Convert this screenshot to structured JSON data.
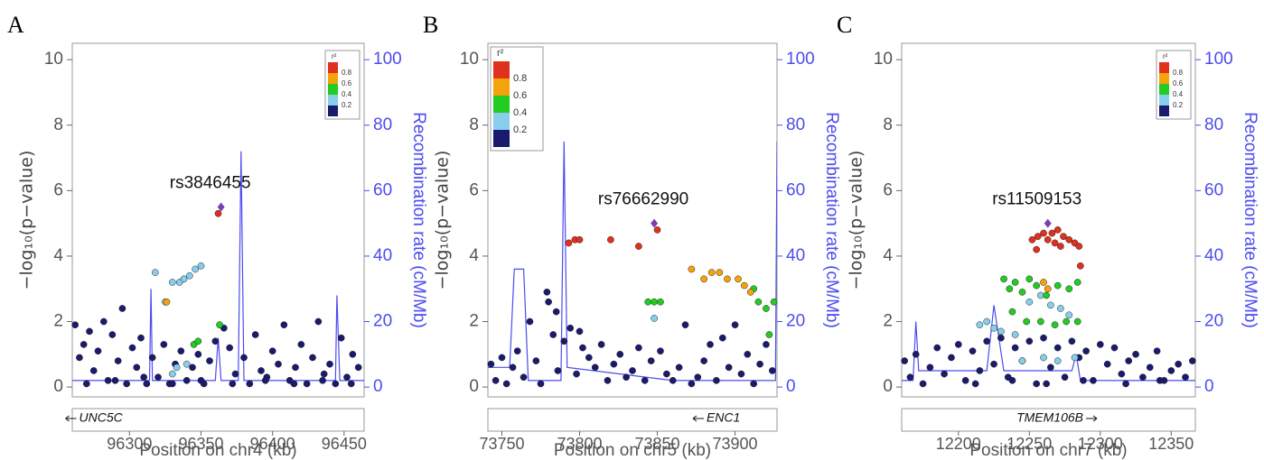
{
  "chart_data": [
    {
      "type": "scatter",
      "panel": "A",
      "xlabel": "Position on chr4 (kb)",
      "ylabel": "−log₁₀(p−value)",
      "y2label": "Recombination rate (cM/Mb)",
      "xlim": [
        96260,
        96464
      ],
      "xticks": [
        96300,
        96350,
        96400,
        96450
      ],
      "ylim": [
        -0.3,
        10.5
      ],
      "yticks": [
        0,
        2,
        4,
        6,
        8,
        10
      ],
      "y2lim": [
        -3,
        105
      ],
      "y2ticks": [
        0,
        20,
        40,
        60,
        80,
        100
      ],
      "legend": {
        "title": "r²",
        "position": "top-right",
        "colors": [
          "#1a1a6e",
          "#87ceeb",
          "#22cc22",
          "#f4a30b",
          "#e0301e"
        ],
        "labels": [
          0.2,
          0.4,
          0.6,
          0.8
        ]
      },
      "series": [
        {
          "color": "#1a1a6e",
          "x": [
            96262,
            96265,
            96268,
            96270,
            96272,
            96275,
            96278,
            96282,
            96285,
            96288,
            96292,
            96295,
            96298,
            96302,
            96305,
            96308,
            96312,
            96316,
            96320,
            96324,
            96328,
            96332,
            96336,
            96340,
            96344,
            96348,
            96352,
            96356,
            96360,
            96366,
            96370,
            96374,
            96380,
            96384,
            96388,
            96392,
            96396,
            96400,
            96404,
            96408,
            96412,
            96416,
            96420,
            96424,
            96428,
            96432,
            96436,
            96440,
            96444,
            96448,
            96452,
            96456,
            96460,
            96290,
            96310,
            96330,
            96350,
            96372,
            96395,
            96415,
            96435,
            96455
          ],
          "values": [
            1.9,
            0.9,
            1.3,
            0.1,
            1.7,
            0.5,
            1.1,
            2.0,
            0.2,
            1.6,
            0.8,
            2.4,
            0.1,
            1.2,
            0.6,
            1.5,
            0.1,
            0.9,
            0.3,
            1.3,
            0.1,
            0.7,
            1.1,
            0.2,
            0.6,
            1.0,
            0.1,
            0.8,
            1.4,
            1.8,
            1.2,
            0.4,
            0.9,
            0.1,
            1.6,
            0.5,
            0.3,
            1.1,
            0.7,
            1.9,
            0.2,
            0.6,
            1.3,
            0.1,
            0.9,
            2.0,
            0.4,
            0.7,
            0.1,
            1.5,
            0.3,
            1.0,
            0.6,
            0.2,
            0.3,
            0.1,
            0.2,
            0.1,
            0.2,
            0.1,
            0.2,
            0.1
          ]
        },
        {
          "color": "#87ceeb",
          "x": [
            96318,
            96325,
            96330,
            96335,
            96338,
            96342,
            96346,
            96350,
            96333,
            96340,
            96330
          ],
          "values": [
            3.5,
            2.6,
            3.2,
            3.2,
            3.3,
            3.4,
            3.6,
            3.7,
            0.6,
            0.7,
            0.4
          ]
        },
        {
          "color": "#22cc22",
          "x": [
            96345,
            96348,
            96363
          ],
          "values": [
            1.3,
            1.4,
            1.9
          ]
        },
        {
          "color": "#f4a30b",
          "x": [
            96326
          ],
          "values": [
            2.6
          ]
        },
        {
          "color": "#e0301e",
          "x": [
            96362
          ],
          "values": [
            5.3
          ]
        }
      ],
      "lead": {
        "label": "rs3846455",
        "x": 96364,
        "value": 5.5,
        "color": "#7b3fb0"
      },
      "recombination": {
        "color": "#4c4cf0",
        "axis": "y2",
        "x": [
          96260,
          96314,
          96315,
          96316,
          96330,
          96360,
          96362,
          96364,
          96376,
          96378,
          96380,
          96444,
          96445,
          96447,
          96464
        ],
        "values": [
          2,
          2,
          30,
          2,
          2,
          2,
          15,
          2,
          2,
          72,
          2,
          2,
          28,
          2,
          2
        ]
      },
      "gene": {
        "name": "UNC5C",
        "start": 96200,
        "end": 96300,
        "strand": "-"
      }
    },
    {
      "type": "scatter",
      "panel": "B",
      "xlabel": "Position on chr5 (kb)",
      "ylabel": "−log₁₀(p−value)",
      "y2label": "Recombination rate (cM/Mb)",
      "xlim": [
        73741,
        73927
      ],
      "xticks": [
        73750,
        73800,
        73850,
        73900
      ],
      "ylim": [
        -0.3,
        10.5
      ],
      "yticks": [
        0,
        2,
        4,
        6,
        8,
        10
      ],
      "y2lim": [
        -3,
        105
      ],
      "y2ticks": [
        0,
        20,
        40,
        60,
        80,
        100
      ],
      "legend": {
        "title": "r²",
        "position": "top-left",
        "colors": [
          "#1a1a6e",
          "#87ceeb",
          "#22cc22",
          "#f4a30b",
          "#e0301e"
        ],
        "labels": [
          0.2,
          0.4,
          0.6,
          0.8
        ]
      },
      "series": [
        {
          "color": "#1a1a6e",
          "x": [
            73743,
            73746,
            73750,
            73753,
            73757,
            73760,
            73764,
            73768,
            73772,
            73775,
            73779,
            73783,
            73786,
            73790,
            73794,
            73798,
            73802,
            73806,
            73810,
            73814,
            73818,
            73822,
            73826,
            73830,
            73834,
            73838,
            73842,
            73846,
            73852,
            73856,
            73860,
            73864,
            73868,
            73872,
            73876,
            73880,
            73884,
            73888,
            73892,
            73896,
            73900,
            73904,
            73908,
            73912,
            73916,
            73920,
            73924,
            73780,
            73785,
            73800
          ],
          "values": [
            0.7,
            0.2,
            0.9,
            0.1,
            0.6,
            1.1,
            0.3,
            2.0,
            0.8,
            0.1,
            2.9,
            1.6,
            0.5,
            1.4,
            1.8,
            0.4,
            1.2,
            0.9,
            0.6,
            1.3,
            0.2,
            0.7,
            1.0,
            0.3,
            0.5,
            1.2,
            0.2,
            0.8,
            1.1,
            0.4,
            0.2,
            0.6,
            1.9,
            0.1,
            0.3,
            0.8,
            1.3,
            0.2,
            1.5,
            0.6,
            1.9,
            0.4,
            1.0,
            0.1,
            0.7,
            1.3,
            0.5,
            2.6,
            2.3,
            1.7
          ]
        },
        {
          "color": "#87ceeb",
          "x": [
            73848
          ],
          "values": [
            2.1
          ]
        },
        {
          "color": "#22cc22",
          "x": [
            73844,
            73848,
            73852,
            73915,
            73920,
            73925,
            73922,
            73912
          ],
          "values": [
            2.6,
            2.6,
            2.6,
            2.6,
            2.4,
            2.6,
            1.6,
            3.0
          ]
        },
        {
          "color": "#f4a30b",
          "x": [
            73872,
            73880,
            73885,
            73890,
            73895,
            73902,
            73906,
            73910
          ],
          "values": [
            3.6,
            3.3,
            3.5,
            3.5,
            3.3,
            3.3,
            3.1,
            2.9
          ]
        },
        {
          "color": "#e0301e",
          "x": [
            73793,
            73797,
            73800,
            73820,
            73838,
            73850
          ],
          "values": [
            4.4,
            4.5,
            4.5,
            4.5,
            4.3,
            4.8
          ]
        }
      ],
      "lead": {
        "label": "rs76662990",
        "x": 73848,
        "value": 5.0,
        "color": "#7b3fb0"
      },
      "recombination": {
        "color": "#4c4cf0",
        "axis": "y2",
        "x": [
          73741,
          73755,
          73758,
          73764,
          73767,
          73788,
          73790,
          73792,
          73860,
          73926,
          73927
        ],
        "values": [
          6,
          6,
          36,
          36,
          2,
          2,
          75,
          6,
          2,
          2,
          75
        ]
      },
      "gene": {
        "name": "ENC1",
        "start": 73885,
        "end": 73900,
        "strand": "-"
      }
    },
    {
      "type": "scatter",
      "panel": "C",
      "xlabel": "Position on chr7 (kb)",
      "ylabel": "−log₁₀(p−value)",
      "y2label": "Recombination rate (cM/Mb)",
      "xlim": [
        12160,
        12367
      ],
      "xticks": [
        12200,
        12250,
        12300,
        12350
      ],
      "ylim": [
        -0.3,
        10.5
      ],
      "yticks": [
        0,
        2,
        4,
        6,
        8,
        10
      ],
      "y2lim": [
        -3,
        105
      ],
      "y2ticks": [
        0,
        20,
        40,
        60,
        80,
        100
      ],
      "legend": {
        "title": "r²",
        "position": "top-right",
        "colors": [
          "#1a1a6e",
          "#87ceeb",
          "#22cc22",
          "#f4a30b",
          "#e0301e"
        ],
        "labels": [
          0.2,
          0.4,
          0.6,
          0.8
        ]
      },
      "series": [
        {
          "color": "#1a1a6e",
          "x": [
            12162,
            12166,
            12170,
            12175,
            12180,
            12185,
            12190,
            12195,
            12200,
            12205,
            12210,
            12215,
            12220,
            12225,
            12230,
            12235,
            12240,
            12245,
            12250,
            12255,
            12260,
            12265,
            12270,
            12275,
            12280,
            12285,
            12290,
            12295,
            12300,
            12305,
            12310,
            12315,
            12320,
            12325,
            12330,
            12335,
            12340,
            12345,
            12350,
            12355,
            12360,
            12365,
            12212,
            12238,
            12262,
            12288,
            12318,
            12342
          ],
          "values": [
            0.8,
            0.3,
            1.0,
            0.1,
            0.6,
            1.2,
            0.4,
            0.9,
            1.3,
            0.2,
            1.1,
            0.5,
            1.4,
            0.7,
            1.5,
            0.3,
            1.2,
            0.8,
            1.4,
            0.1,
            1.5,
            0.6,
            1.2,
            0.3,
            1.4,
            0.9,
            1.1,
            0.2,
            1.3,
            0.7,
            1.2,
            0.4,
            0.8,
            1.0,
            0.3,
            0.6,
            1.1,
            0.2,
            0.5,
            0.7,
            0.3,
            0.8,
            0.1,
            0.2,
            0.1,
            0.2,
            0.1,
            0.2
          ]
        },
        {
          "color": "#87ceeb",
          "x": [
            12215,
            12220,
            12225,
            12230,
            12240,
            12250,
            12258,
            12265,
            12272,
            12278,
            12245,
            12260,
            12270,
            12282
          ],
          "values": [
            1.9,
            2.0,
            1.8,
            1.7,
            1.6,
            2.6,
            2.8,
            2.5,
            2.4,
            2.2,
            0.8,
            0.9,
            0.8,
            0.9
          ]
        },
        {
          "color": "#22cc22",
          "x": [
            12232,
            12236,
            12240,
            12245,
            12250,
            12255,
            12262,
            12270,
            12278,
            12284,
            12238,
            12248,
            12258,
            12268,
            12276,
            12284
          ],
          "values": [
            3.3,
            3.0,
            3.2,
            2.9,
            3.3,
            3.1,
            2.8,
            3.1,
            3.0,
            3.2,
            2.3,
            2.0,
            2.0,
            1.9,
            2.0,
            2.0
          ]
        },
        {
          "color": "#f4a30b",
          "x": [
            12263,
            12260
          ],
          "values": [
            3.0,
            3.2
          ]
        },
        {
          "color": "#e0301e",
          "x": [
            12252,
            12256,
            12260,
            12266,
            12270,
            12274,
            12278,
            12282,
            12285,
            12255,
            12263,
            12268,
            12272,
            12286
          ],
          "values": [
            4.5,
            4.6,
            4.7,
            4.7,
            4.8,
            4.6,
            4.5,
            4.4,
            4.3,
            4.2,
            4.5,
            4.4,
            4.3,
            3.7
          ]
        }
      ],
      "lead": {
        "label": "rs11509153",
        "x": 12263,
        "value": 5.0,
        "color": "#7b3fb0"
      },
      "recombination": {
        "color": "#4c4cf0",
        "axis": "y2",
        "x": [
          12160,
          12168,
          12170,
          12172,
          12220,
          12225,
          12232,
          12280,
          12283,
          12286,
          12367
        ],
        "values": [
          2,
          2,
          20,
          5,
          5,
          25,
          5,
          5,
          10,
          2,
          2
        ]
      },
      "gene": {
        "name": "TMEM106B",
        "start": 12251,
        "end": 12278,
        "strand": "+"
      }
    }
  ]
}
